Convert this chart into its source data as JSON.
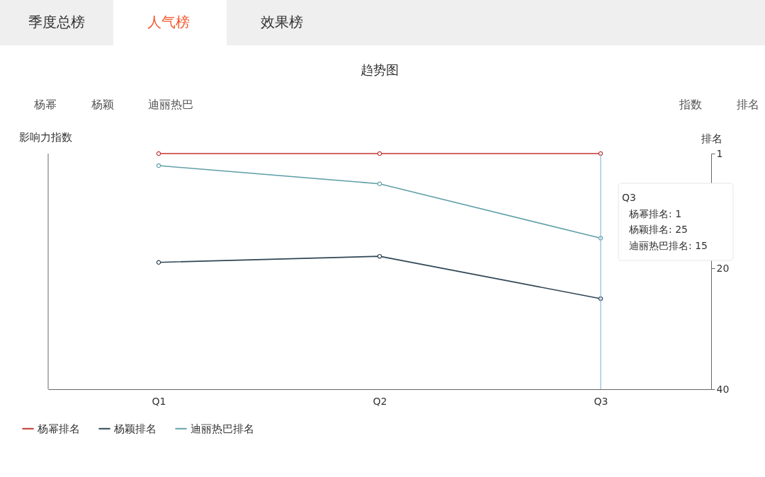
{
  "chart_data": {
    "type": "line",
    "title": "趋势图",
    "ylabel": "影响力指数",
    "y2label": "排名",
    "categories": [
      "Q1",
      "Q2",
      "Q3"
    ],
    "series": [
      {
        "name": "杨幂排名",
        "color": "#c23531",
        "values": [
          1,
          1,
          1
        ],
        "axis": "y2"
      },
      {
        "name": "杨颖排名",
        "color": "#2f4554",
        "values": [
          19,
          18,
          25
        ],
        "axis": "y2"
      },
      {
        "name": "迪丽热巴排名",
        "color": "#61a0a8",
        "values": [
          3,
          6,
          15
        ],
        "axis": "y2"
      }
    ],
    "y2lim": [
      40,
      1
    ],
    "y2ticks": [
      1,
      20,
      40
    ],
    "legend": "bottom left",
    "marker": "circle",
    "line_style": "solid",
    "ref_lines": [
      {
        "axis": "x",
        "value": "Q3",
        "color": "#8cb8e0"
      }
    ],
    "annotations": [
      "季度总榜",
      "人气榜",
      "效果榜",
      "杨幂",
      "杨颖",
      "迪丽热巴",
      "指数",
      "排名",
      "Q3",
      "杨幂排名: 1",
      "杨颖排名: 25",
      "迪丽热巴排名: 15"
    ]
  }
}
